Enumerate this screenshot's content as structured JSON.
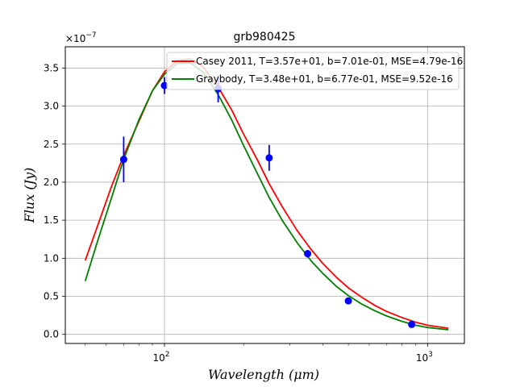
{
  "chart_data": {
    "type": "scatter",
    "title": "grb980425",
    "xlabel": "Wavelength (μm)",
    "ylabel": "Flux (Jy)",
    "xscale": "log",
    "xlim": [
      42,
      1380
    ],
    "ylim": [
      -1.2e-08,
      3.78e-07
    ],
    "y_offset_label": "×10",
    "y_offset_exponent": "−7",
    "grid": true,
    "legend_position": "upper right",
    "y_ticks": [
      {
        "value": 0.0,
        "label": "0.0"
      },
      {
        "value": 5e-08,
        "label": "0.5"
      },
      {
        "value": 1e-07,
        "label": "1.0"
      },
      {
        "value": 1.5e-07,
        "label": "1.5"
      },
      {
        "value": 2e-07,
        "label": "2.0"
      },
      {
        "value": 2.5e-07,
        "label": "2.5"
      },
      {
        "value": 3e-07,
        "label": "3.0"
      },
      {
        "value": 3.5e-07,
        "label": "3.5"
      }
    ],
    "x_ticks": [
      {
        "value": 100,
        "base": "10",
        "exp": "2"
      },
      {
        "value": 1000,
        "base": "10",
        "exp": "3"
      }
    ],
    "observations": {
      "name": "data",
      "color": "#0000ff",
      "x": [
        70,
        100,
        160,
        250,
        350,
        500,
        870
      ],
      "y": [
        2.3e-07,
        3.27e-07,
        3.23e-07,
        2.32e-07,
        1.06e-07,
        4.4e-08,
        1.3e-08
      ],
      "yerr": [
        3e-08,
        1.1e-08,
        1.8e-08,
        1.7e-08,
        5e-09,
        2e-09,
        2e-09
      ]
    },
    "series": [
      {
        "name": "Casey 2011, T=3.57e+01, b=7.01e-01, MSE=4.79e-16",
        "color": "#ff0000",
        "x": [
          50,
          56,
          63,
          70,
          80,
          90,
          100,
          112,
          125,
          140,
          160,
          180,
          200,
          225,
          250,
          280,
          320,
          360,
          400,
          450,
          500,
          560,
          630,
          700,
          800,
          900,
          1000,
          1200
        ],
        "y": [
          9.7e-08,
          1.45e-07,
          1.95e-07,
          2.35e-07,
          2.8e-07,
          3.2e-07,
          3.45e-07,
          3.6e-07,
          3.62e-07,
          3.52e-07,
          3.25e-07,
          2.95e-07,
          2.63e-07,
          2.3e-07,
          1.98e-07,
          1.68e-07,
          1.36e-07,
          1.12e-07,
          9.3e-08,
          7.5e-08,
          6.1e-08,
          4.9e-08,
          3.8e-08,
          3e-08,
          2.2e-08,
          1.6e-08,
          1.2e-08,
          8e-09
        ]
      },
      {
        "name": "Graybody, T=3.48e+01, b=6.77e-01, MSE=9.52e-16",
        "color": "#008000",
        "x": [
          50,
          56,
          63,
          70,
          80,
          90,
          100,
          112,
          125,
          140,
          160,
          180,
          200,
          225,
          250,
          280,
          320,
          360,
          400,
          450,
          500,
          560,
          630,
          700,
          800,
          900,
          1000,
          1200
        ],
        "y": [
          7e-08,
          1.25e-07,
          1.8e-07,
          2.3e-07,
          2.82e-07,
          3.2e-07,
          3.42e-07,
          3.56e-07,
          3.57e-07,
          3.45e-07,
          3.15e-07,
          2.82e-07,
          2.48e-07,
          2.12e-07,
          1.8e-07,
          1.5e-07,
          1.2e-07,
          9.7e-08,
          8e-08,
          6.3e-08,
          5.1e-08,
          4e-08,
          3.1e-08,
          2.4e-08,
          1.7e-08,
          1.2e-08,
          9e-09,
          6e-09
        ]
      }
    ]
  }
}
